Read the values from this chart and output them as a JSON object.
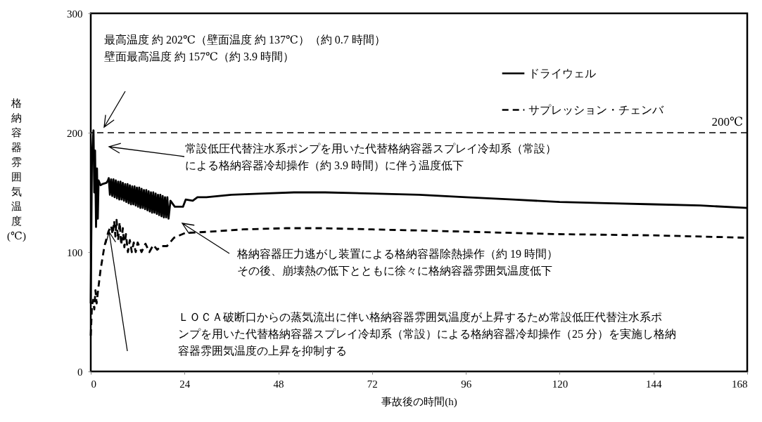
{
  "chart_data": {
    "type": "line",
    "xlabel": "事故後の時間(h)",
    "ylabel": "格納容器雰囲気温度(℃)",
    "xlim": [
      0,
      168
    ],
    "xticks": [
      0,
      24,
      48,
      72,
      96,
      120,
      144,
      168
    ],
    "ylim": [
      0,
      300
    ],
    "yticks": [
      0,
      100,
      200,
      300
    ],
    "legend": "top right",
    "ref_lines": [
      {
        "axis": "y",
        "value": 200,
        "label": "200℃",
        "line_style": "dashed"
      }
    ],
    "annotations": [
      "最高温度 約 202℃（壁面温度 約 137℃）（約 0.7 時間）",
      "壁面最高温度 約 157℃（約 3.9 時間）",
      "常設低圧代替注水系ポンプを用いた代替格納容器スプレイ冷却系（常設）による格納容器冷却操作（約 3.9 時間）に伴う温度低下",
      "格納容器圧力逃がし装置による格納容器除熱操作（約 19 時間）その後、崩壊熱の低下とともに徐々に格納容器雰囲気温度低下",
      "ＬＯＣＡ破断口からの蒸気流出に伴い格納容器雰囲気温度が上昇するため常設低圧代替注水系ポンプを用いた代替格納容器スプレイ冷却系（常設）による格納容器冷却操作（25 分）を実施し格納容器雰囲気温度の上昇を抑制する"
    ],
    "series": [
      {
        "name": "ドライウェル",
        "color": "#000000",
        "line_style": "solid",
        "x": [
          0,
          0.3,
          0.7,
          0.9,
          1.1,
          1.35,
          1.6,
          1.8,
          2.0,
          2.5,
          3.0,
          4.0,
          4.4,
          4.6,
          4.9,
          5.2,
          5.5,
          5.8,
          6.1,
          6.4,
          6.7,
          7.0,
          7.3,
          7.6,
          7.9,
          8.2,
          8.5,
          8.8,
          9.1,
          9.4,
          9.7,
          10.0,
          10.3,
          10.6,
          10.9,
          11.2,
          11.5,
          11.8,
          12.1,
          12.4,
          12.7,
          13.0,
          13.3,
          13.6,
          13.9,
          14.2,
          14.5,
          14.8,
          15.1,
          15.4,
          15.7,
          16.0,
          16.3,
          16.6,
          16.9,
          17.2,
          17.5,
          17.8,
          18.1,
          18.4,
          18.7,
          19.0,
          19.3,
          19.6,
          19.9,
          20.4,
          21.5,
          23.6,
          24.3,
          26.1,
          27.3,
          29.6,
          36,
          44,
          52,
          60,
          72,
          84,
          96,
          108,
          120,
          132,
          144,
          156,
          168
        ],
        "values": [
          57,
          180,
          202,
          150,
          185,
          121,
          170,
          128,
          160,
          156,
          157,
          158,
          160,
          162,
          148,
          161,
          147,
          161,
          146,
          160,
          145,
          159,
          144,
          159,
          144,
          158,
          143,
          157,
          142,
          157,
          141,
          156,
          140,
          155,
          140,
          155,
          139,
          154,
          138,
          154,
          137,
          153,
          137,
          152,
          136,
          152,
          135,
          151,
          134,
          150,
          133,
          150,
          133,
          149,
          132,
          148,
          131,
          148,
          130,
          147,
          129,
          146,
          129,
          146,
          128,
          143,
          138,
          138,
          144,
          143,
          146,
          146,
          148,
          149,
          150,
          150,
          149,
          148,
          146,
          144,
          142,
          141,
          140,
          139,
          137
        ]
      },
      {
        "name": "サプレッション・チェンバ",
        "color": "#000000",
        "line_style": "dashed",
        "x": [
          0,
          0.3,
          0.6,
          0.9,
          1.2,
          1.5,
          1.8,
          2.5,
          3.5,
          4.5,
          5.2,
          5.6,
          6.0,
          6.3,
          6.6,
          7.0,
          7.4,
          7.8,
          8.2,
          8.6,
          9.0,
          9.5,
          10,
          10.5,
          11,
          11.5,
          12,
          13,
          14,
          15,
          16,
          17,
          18,
          19.5,
          21.3,
          24.2,
          30,
          39,
          50,
          59,
          72,
          85,
          97,
          120,
          144,
          168
        ],
        "values": [
          30,
          55,
          60,
          52,
          68,
          57,
          66,
          85,
          105,
          117,
          122,
          115,
          126,
          113,
          127,
          110,
          125,
          106,
          120,
          104,
          115,
          100,
          110,
          100,
          108,
          100,
          108,
          100,
          107,
          100,
          106,
          102,
          105,
          105,
          112,
          116,
          117,
          119,
          120,
          120,
          119,
          118,
          117,
          115,
          114,
          112
        ]
      }
    ]
  }
}
